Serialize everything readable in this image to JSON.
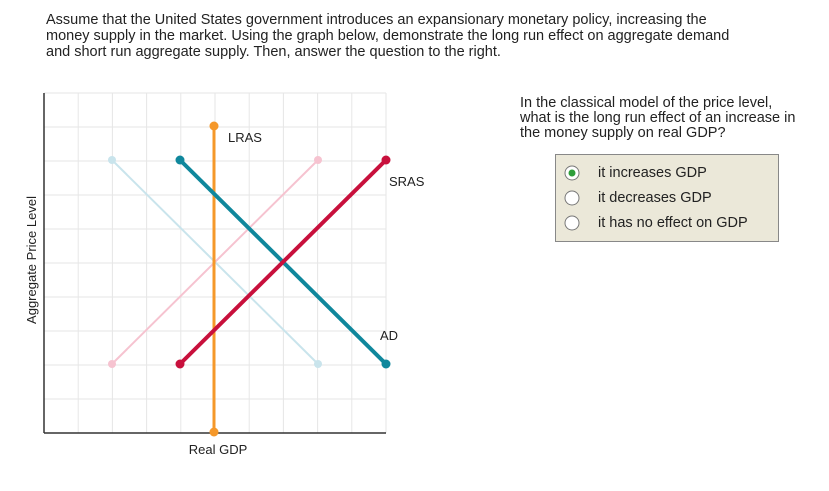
{
  "instructions": {
    "lines": [
      "Assume that the United States government introduces an expansionary monetary policy, increasing the",
      "money supply in the market. Using the graph below, demonstrate the long run effect on aggregate demand",
      "and short run aggregate supply. Then, answer the question to the right."
    ]
  },
  "graph": {
    "y_axis_label": "Aggregate Price Level",
    "x_axis_label": "Real GDP",
    "lras_label": "LRAS",
    "sras_label": "SRAS",
    "ad_label": "AD"
  },
  "question": {
    "lines": [
      "In the classical model of the price level,",
      "what is the long run effect of an increase in",
      "the money supply on real GDP?"
    ],
    "options": [
      "it increases GDP",
      "it decreases GDP",
      "it has no effect on GDP"
    ]
  }
}
